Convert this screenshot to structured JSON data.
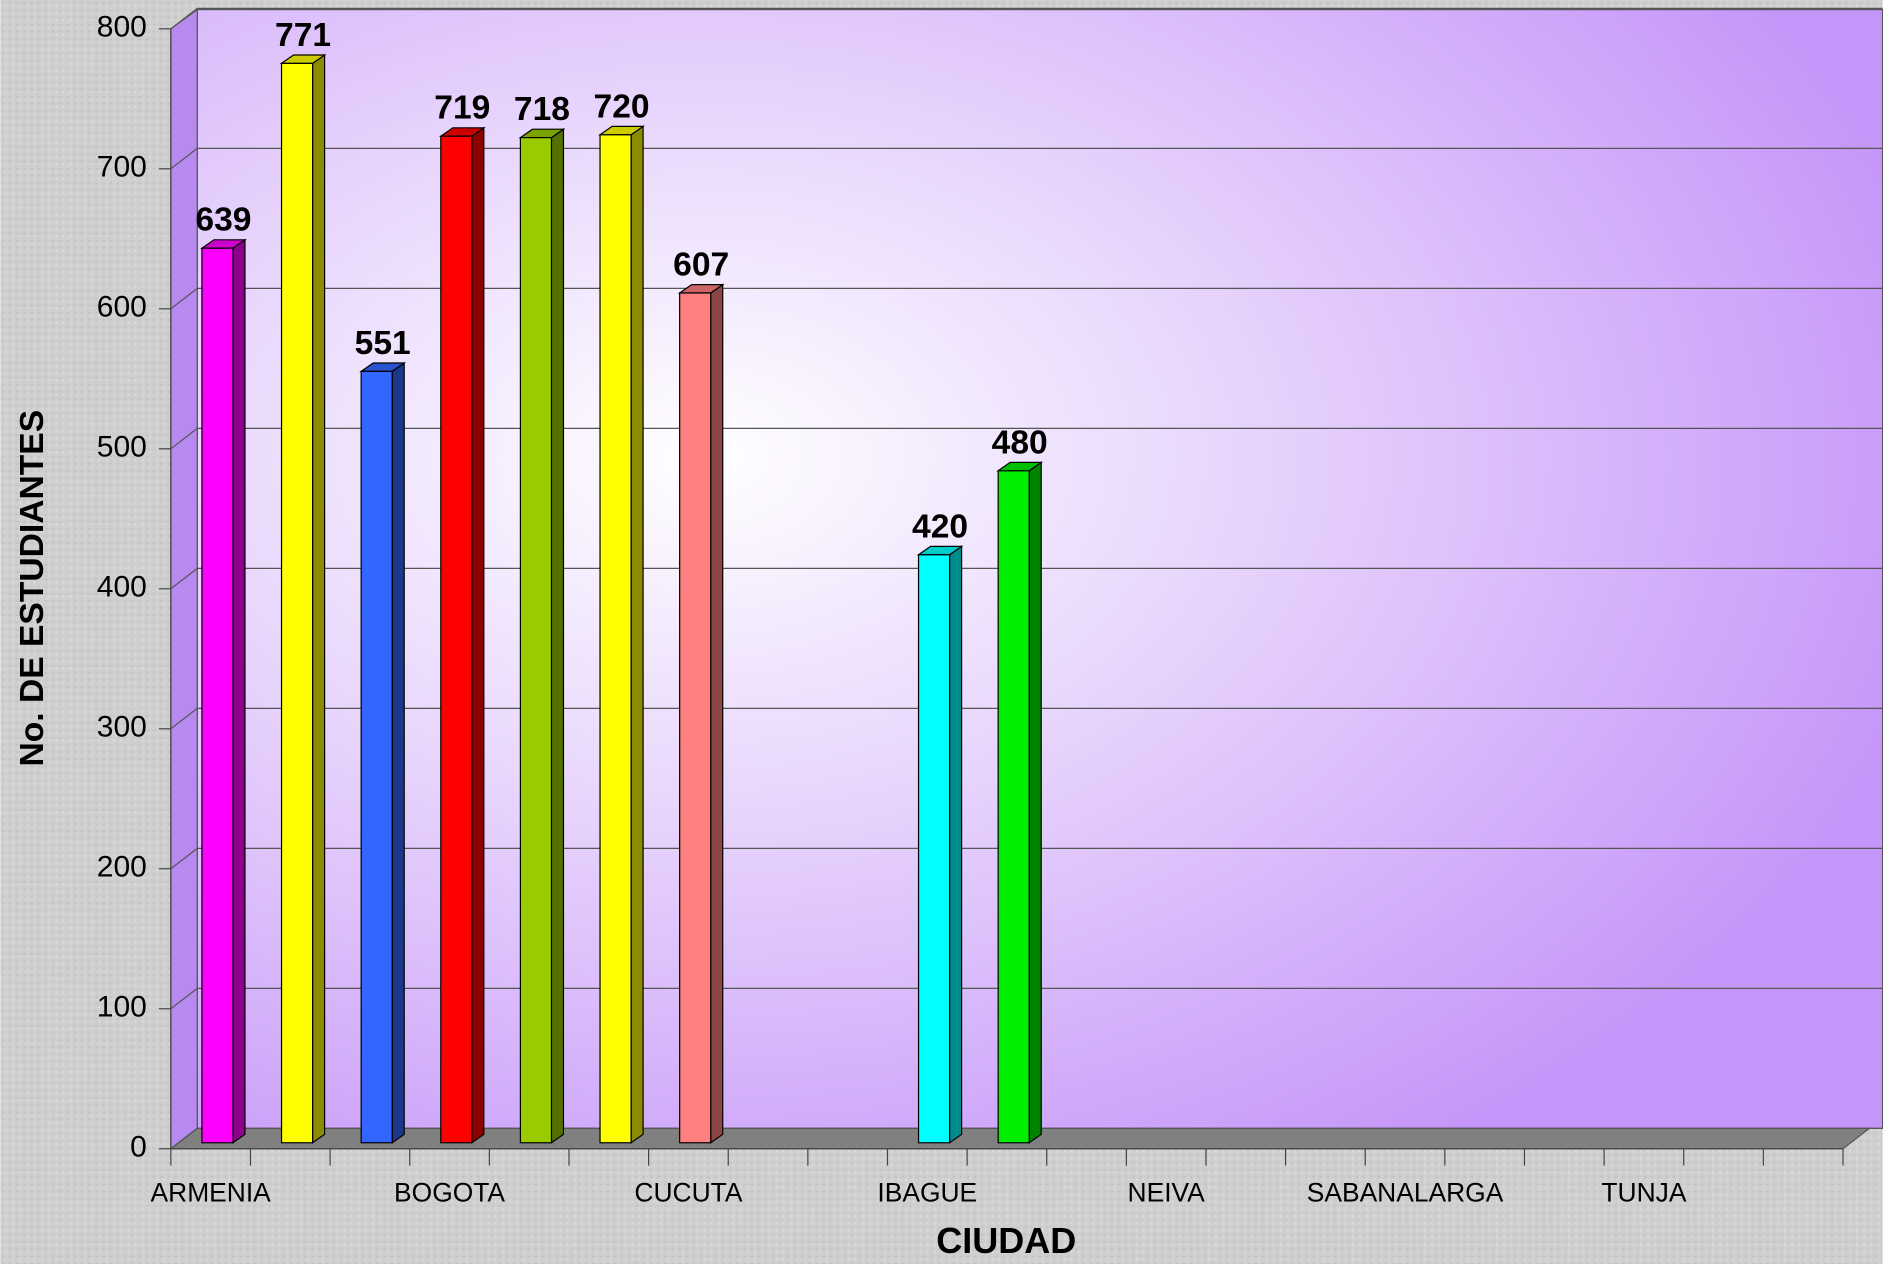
{
  "chart_data": {
    "type": "bar3d",
    "x_label": "CIUDAD",
    "y_label": "No. DE ESTUDIANTES",
    "categories": [
      "ARMENIA",
      null,
      null,
      "BOGOTA",
      null,
      null,
      "CUCUTA",
      null,
      null,
      "IBAGUE",
      null,
      null,
      "NEIVA",
      null,
      null,
      "SABANALARGA",
      null,
      null,
      "TUNJA",
      null,
      null
    ],
    "values": [
      639,
      771,
      551,
      719,
      718,
      720,
      607,
      null,
      null,
      420,
      480,
      null,
      null,
      null,
      null,
      null,
      null,
      null,
      null,
      null,
      null
    ],
    "colors": [
      "#ff00ff",
      "#ffff00",
      "#3366ff",
      "#ff0000",
      "#99cc00",
      "#ffff00",
      "#ff8080",
      null,
      null,
      "#00ffff",
      "#00ee00",
      null,
      null,
      null,
      null,
      null,
      null,
      null,
      null,
      null,
      null
    ],
    "ylim": [
      0,
      800
    ],
    "yticks": [
      0,
      100,
      200,
      300,
      400,
      500,
      600,
      700,
      800
    ],
    "grid": true
  }
}
